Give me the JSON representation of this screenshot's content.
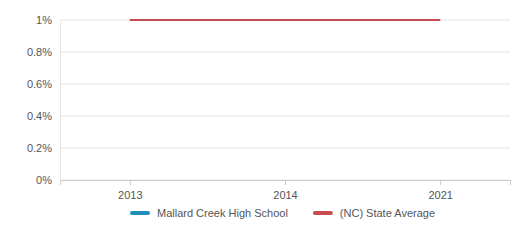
{
  "chart_data": {
    "type": "line",
    "categories": [
      "2013",
      "2014",
      "2021"
    ],
    "series": [
      {
        "name": "Mallard Creek High School",
        "color": "#1f8ebf",
        "values": [
          1,
          1,
          1
        ]
      },
      {
        "name": "(NC) State Average",
        "color": "#c84b53",
        "values": [
          1,
          1,
          1
        ]
      }
    ],
    "ylim": [
      0,
      1
    ],
    "yticks": [
      {
        "value": 0,
        "label": "0%"
      },
      {
        "value": 0.2,
        "label": "0.2%"
      },
      {
        "value": 0.4,
        "label": "0.4%"
      },
      {
        "value": 0.6,
        "label": "0.6%"
      },
      {
        "value": 0.8,
        "label": "0.8%"
      },
      {
        "value": 1,
        "label": "1%"
      }
    ],
    "grid": true,
    "legend": "bottom"
  }
}
